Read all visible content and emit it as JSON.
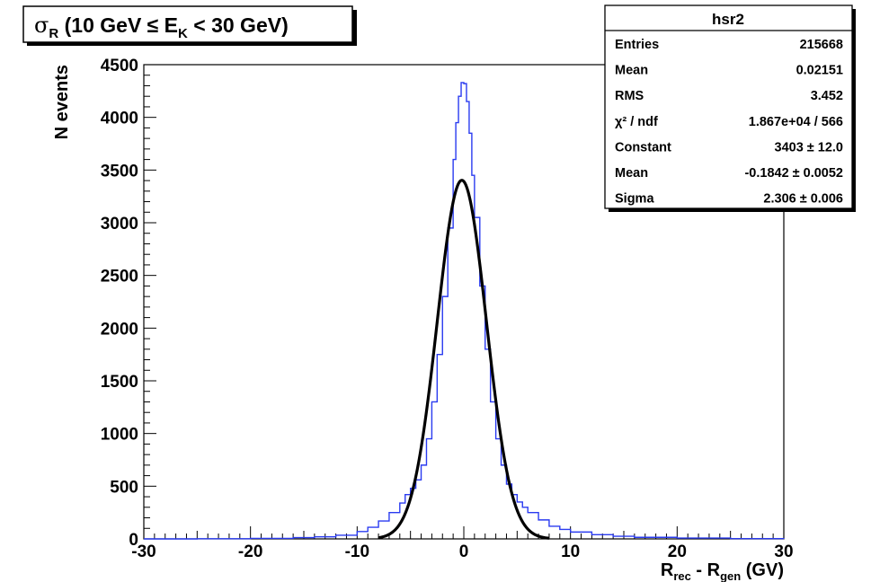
{
  "title": {
    "sigma": "σ",
    "sigma_sub": "R",
    "open": " (10 GeV ≤ E",
    "e_sub": "K",
    "close": " < 30 GeV)"
  },
  "ylabel": "N events",
  "xlabel": {
    "r1": "R",
    "r1_sub": "rec",
    "mid": " - R",
    "r2_sub": "gen",
    "unit": " (GV)"
  },
  "stats_box": {
    "name": "hsr2",
    "rows": [
      {
        "label": "Entries",
        "value": "215668"
      },
      {
        "label": "Mean",
        "value": "0.02151"
      },
      {
        "label": "RMS",
        "value": "3.452"
      },
      {
        "label": "χ² / ndf",
        "value": "1.867e+04 / 566"
      },
      {
        "label": "Constant",
        "value": "3403 ± 12.0"
      },
      {
        "label": "Mean",
        "value": "-0.1842 ± 0.0052"
      },
      {
        "label": "Sigma",
        "value": "2.306 ± 0.006"
      }
    ]
  },
  "colors": {
    "histogram": "#2a3bf0",
    "fit": "#000000",
    "background": "#ffffff"
  },
  "chart_data": {
    "type": "line",
    "xlim": [
      -30,
      30
    ],
    "ylim": [
      0,
      4500
    ],
    "x_ticks": [
      -30,
      -20,
      -10,
      0,
      10,
      20,
      30
    ],
    "y_ticks": [
      0,
      500,
      1000,
      1500,
      2000,
      2500,
      3000,
      3500,
      4000,
      4500
    ],
    "grid": false,
    "series": [
      {
        "style": "histogram",
        "x": [
          -30,
          -25,
          -20,
          -16,
          -14,
          -12,
          -10,
          -9,
          -8,
          -7,
          -6,
          -5.5,
          -5,
          -4.5,
          -4,
          -3.5,
          -3,
          -2.5,
          -2,
          -1.5,
          -1,
          -0.75,
          -0.5,
          -0.25,
          0,
          0.25,
          0.5,
          0.75,
          1,
          1.5,
          2,
          2.5,
          3,
          3.5,
          4,
          4.5,
          5,
          5.5,
          6,
          7,
          8,
          9,
          10,
          12,
          14,
          16,
          20,
          25,
          30
        ],
        "y": [
          0,
          2,
          5,
          12,
          20,
          35,
          70,
          110,
          170,
          250,
          340,
          420,
          480,
          560,
          700,
          950,
          1300,
          1750,
          2300,
          2950,
          3600,
          3950,
          4200,
          4330,
          4320,
          4150,
          3850,
          3450,
          3050,
          2400,
          1800,
          1300,
          950,
          700,
          520,
          420,
          350,
          300,
          250,
          180,
          120,
          90,
          65,
          40,
          25,
          15,
          8,
          3,
          0
        ]
      },
      {
        "style": "gaussian_fit",
        "constant": 3403,
        "mean": -0.1842,
        "sigma": 2.306,
        "range": [
          -8,
          8
        ]
      }
    ]
  }
}
